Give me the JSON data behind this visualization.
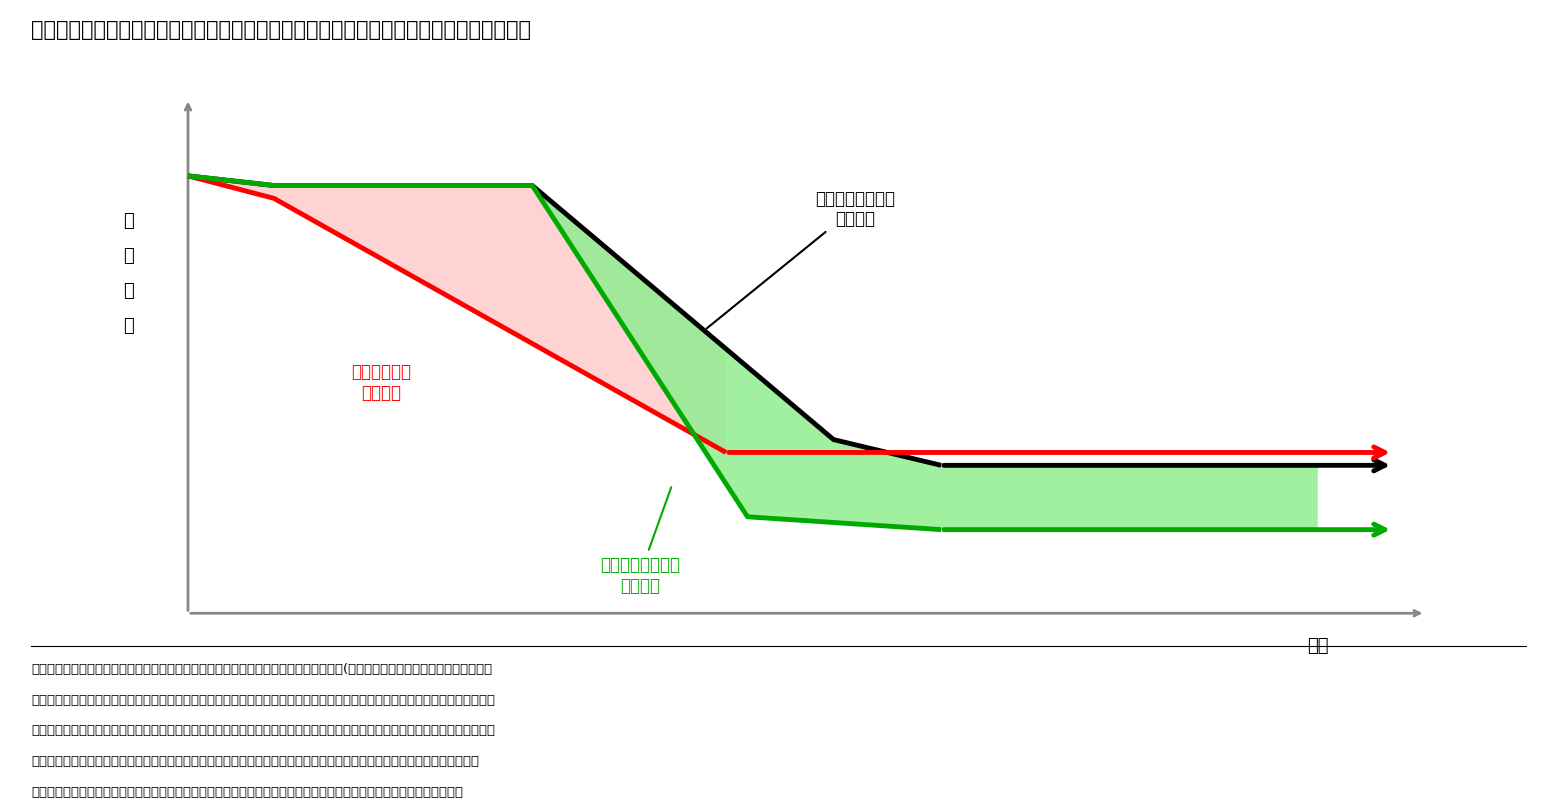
{
  "title": "図表７　未調整分の繰越しや常時完全調整（フル適用）と給付水準の関係　（イメージ）",
  "ylabel": "給\n付\n水\n準",
  "xlabel": "年度",
  "bg_color": "#ffffff",
  "black_line": [
    [
      0,
      10
    ],
    [
      0.8,
      9.85
    ],
    [
      3.2,
      9.85
    ],
    [
      6.0,
      5.9
    ],
    [
      7.0,
      5.5
    ],
    [
      10.5,
      5.5
    ]
  ],
  "red_line": [
    [
      0,
      10
    ],
    [
      0.8,
      9.65
    ],
    [
      5.0,
      5.7
    ],
    [
      10.5,
      5.7
    ]
  ],
  "green_line": [
    [
      0,
      10
    ],
    [
      0.8,
      9.85
    ],
    [
      3.2,
      9.85
    ],
    [
      5.2,
      4.7
    ],
    [
      7.0,
      4.5
    ],
    [
      10.5,
      4.5
    ]
  ],
  "label_nashi": "未調整分の繰越が\nない制度",
  "label_ari": "未調整分の繰越が\nある制度",
  "label_red": "常に完全調整\nする制度",
  "note_line1": "（注１）　図中の折れ線は給付水準の推移を意味する。例えば緑の線は、調整が行われ(はじめの右下がり部分）、その後に調整",
  "note_line2": "　　　　が繰り越される状態が続き（水平部分）、その後に繰越分を消化しながら調整が進み（下がり方が大きい部分）、繰越分",
  "note_line3": "　　　　の消化が済んだ後も調整が続き（下がり方が小さい部分）、調整の完了を迎える（再び水平になった部分）というパター",
  "note_line4": "　　　　ンを示している。緑の塗り潰しは未調整分の繰越がない制度と比べて未調整分の繰越がある制度で給付費が抑制され",
  "note_line5": "　　　　る部分、赤の塗り潰しは未調整分の繰越がある制度と比べて常に完全調整する精度で給付費が抑制される部分。"
}
